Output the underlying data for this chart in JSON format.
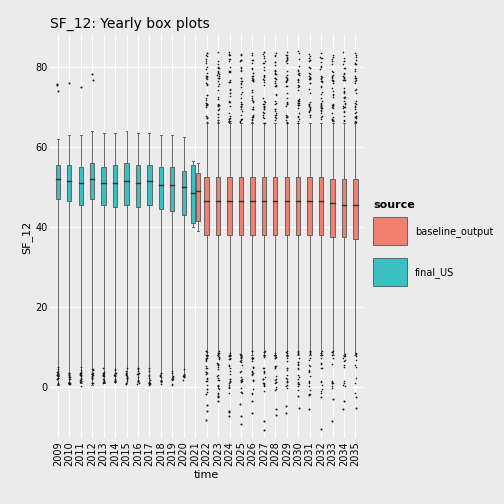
{
  "title": "SF_12: Yearly box plots",
  "xlabel": "time",
  "ylabel": "SF_12",
  "bg_color": "#EBEBEB",
  "grid_color": "white",
  "teal_color": "#3BBFC0",
  "salmon_color": "#F08070",
  "years_teal": [
    2009,
    2010,
    2011,
    2012,
    2013,
    2014,
    2015,
    2016,
    2017,
    2018,
    2019,
    2020,
    2021
  ],
  "years_salmon": [
    2021,
    2022,
    2023,
    2024,
    2025,
    2026,
    2027,
    2028,
    2029,
    2030,
    2031,
    2032,
    2033,
    2034,
    2035
  ],
  "all_years": [
    2009,
    2010,
    2011,
    2012,
    2013,
    2014,
    2015,
    2016,
    2017,
    2018,
    2019,
    2020,
    2021,
    2022,
    2023,
    2024,
    2025,
    2026,
    2027,
    2028,
    2029,
    2030,
    2031,
    2032,
    2033,
    2034,
    2035
  ],
  "teal_stats": {
    "2009": {
      "q1": 47.0,
      "median": 52.0,
      "q3": 55.5,
      "whislo": 0.5,
      "whishi": 62.0,
      "n_low_dots": 25,
      "n_high_dots": 5,
      "fli_hi": [
        74,
        75,
        76
      ]
    },
    "2010": {
      "q1": 46.5,
      "median": 51.5,
      "q3": 55.5,
      "whislo": 1.0,
      "whishi": 63.0,
      "n_low_dots": 20,
      "n_high_dots": 3,
      "fli_hi": [
        76
      ]
    },
    "2011": {
      "q1": 45.5,
      "median": 51.0,
      "q3": 55.0,
      "whislo": 1.0,
      "whishi": 63.0,
      "n_low_dots": 18,
      "n_high_dots": 4,
      "fli_hi": [
        75
      ]
    },
    "2012": {
      "q1": 47.0,
      "median": 52.0,
      "q3": 56.0,
      "whislo": 0.5,
      "whishi": 64.0,
      "n_low_dots": 20,
      "n_high_dots": 4,
      "fli_hi": [
        77,
        78
      ]
    },
    "2013": {
      "q1": 45.5,
      "median": 51.0,
      "q3": 55.0,
      "whislo": 1.0,
      "whishi": 63.5,
      "n_low_dots": 18,
      "n_high_dots": 3,
      "fli_hi": []
    },
    "2014": {
      "q1": 45.0,
      "median": 51.0,
      "q3": 55.5,
      "whislo": 1.5,
      "whishi": 63.5,
      "n_low_dots": 15,
      "n_high_dots": 3,
      "fli_hi": []
    },
    "2015": {
      "q1": 45.5,
      "median": 51.5,
      "q3": 56.0,
      "whislo": 1.0,
      "whishi": 64.0,
      "n_low_dots": 14,
      "n_high_dots": 3,
      "fli_hi": []
    },
    "2016": {
      "q1": 45.0,
      "median": 51.0,
      "q3": 55.5,
      "whislo": 1.5,
      "whishi": 63.5,
      "n_low_dots": 13,
      "n_high_dots": 3,
      "fli_hi": []
    },
    "2017": {
      "q1": 45.5,
      "median": 51.5,
      "q3": 55.5,
      "whislo": 1.0,
      "whishi": 63.5,
      "n_low_dots": 12,
      "n_high_dots": 3,
      "fli_hi": []
    },
    "2018": {
      "q1": 44.5,
      "median": 50.5,
      "q3": 55.0,
      "whislo": 1.5,
      "whishi": 63.0,
      "n_low_dots": 10,
      "n_high_dots": 3,
      "fli_hi": []
    },
    "2019": {
      "q1": 44.0,
      "median": 50.5,
      "q3": 55.0,
      "whislo": 2.0,
      "whishi": 63.0,
      "n_low_dots": 9,
      "n_high_dots": 3,
      "fli_hi": []
    },
    "2020": {
      "q1": 43.0,
      "median": 50.0,
      "q3": 54.0,
      "whislo": 3.0,
      "whishi": 62.5,
      "n_low_dots": 8,
      "n_high_dots": 3,
      "fli_hi": []
    },
    "2021": {
      "q1": 41.0,
      "median": 48.5,
      "q3": 55.5,
      "whislo": 40.0,
      "whishi": 56.5,
      "n_low_dots": 0,
      "n_high_dots": 0,
      "fli_hi": []
    }
  },
  "salmon_stats": {
    "2021": {
      "q1": 41.5,
      "median": 49.0,
      "q3": 53.5,
      "whislo": 39.0,
      "whishi": 56.0,
      "n_low_dots": 0,
      "n_high_dots": 0
    },
    "2022": {
      "q1": 38.0,
      "median": 46.5,
      "q3": 52.5,
      "whislo": 8.0,
      "whishi": 66.0,
      "n_low_dots": 30,
      "n_high_dots": 35
    },
    "2023": {
      "q1": 38.0,
      "median": 46.5,
      "q3": 52.5,
      "whislo": 8.0,
      "whishi": 66.0,
      "n_low_dots": 28,
      "n_high_dots": 35
    },
    "2024": {
      "q1": 38.0,
      "median": 46.5,
      "q3": 52.5,
      "whislo": 8.0,
      "whishi": 66.0,
      "n_low_dots": 25,
      "n_high_dots": 35
    },
    "2025": {
      "q1": 38.0,
      "median": 46.5,
      "q3": 52.5,
      "whislo": 8.0,
      "whishi": 66.0,
      "n_low_dots": 25,
      "n_high_dots": 35
    },
    "2026": {
      "q1": 38.0,
      "median": 46.5,
      "q3": 52.5,
      "whislo": 8.0,
      "whishi": 66.0,
      "n_low_dots": 22,
      "n_high_dots": 35
    },
    "2027": {
      "q1": 38.0,
      "median": 46.5,
      "q3": 52.5,
      "whislo": 8.0,
      "whishi": 66.0,
      "n_low_dots": 22,
      "n_high_dots": 35
    },
    "2028": {
      "q1": 38.0,
      "median": 46.5,
      "q3": 52.5,
      "whislo": 8.0,
      "whishi": 66.0,
      "n_low_dots": 22,
      "n_high_dots": 35
    },
    "2029": {
      "q1": 38.0,
      "median": 46.5,
      "q3": 52.5,
      "whislo": 8.0,
      "whishi": 66.0,
      "n_low_dots": 20,
      "n_high_dots": 35
    },
    "2030": {
      "q1": 38.0,
      "median": 46.5,
      "q3": 52.5,
      "whislo": 8.0,
      "whishi": 66.0,
      "n_low_dots": 20,
      "n_high_dots": 35
    },
    "2031": {
      "q1": 38.0,
      "median": 46.5,
      "q3": 52.5,
      "whislo": 8.0,
      "whishi": 66.0,
      "n_low_dots": 20,
      "n_high_dots": 35
    },
    "2032": {
      "q1": 38.0,
      "median": 46.5,
      "q3": 52.5,
      "whislo": 8.0,
      "whishi": 66.0,
      "n_low_dots": 18,
      "n_high_dots": 35
    },
    "2033": {
      "q1": 37.5,
      "median": 46.0,
      "q3": 52.0,
      "whislo": 8.0,
      "whishi": 66.0,
      "n_low_dots": 15,
      "n_high_dots": 35
    },
    "2034": {
      "q1": 37.5,
      "median": 45.5,
      "q3": 52.0,
      "whislo": 8.0,
      "whishi": 66.0,
      "n_low_dots": 12,
      "n_high_dots": 35
    },
    "2035": {
      "q1": 37.0,
      "median": 45.5,
      "q3": 52.0,
      "whislo": 8.0,
      "whishi": 66.0,
      "n_low_dots": 10,
      "n_high_dots": 35
    }
  },
  "ylim": [
    -13,
    88
  ],
  "yticks": [
    0,
    20,
    40,
    60,
    80
  ],
  "legend_labels": [
    "baseline_output",
    "final_US"
  ],
  "title_fontsize": 10,
  "axis_fontsize": 8,
  "tick_fontsize": 7
}
